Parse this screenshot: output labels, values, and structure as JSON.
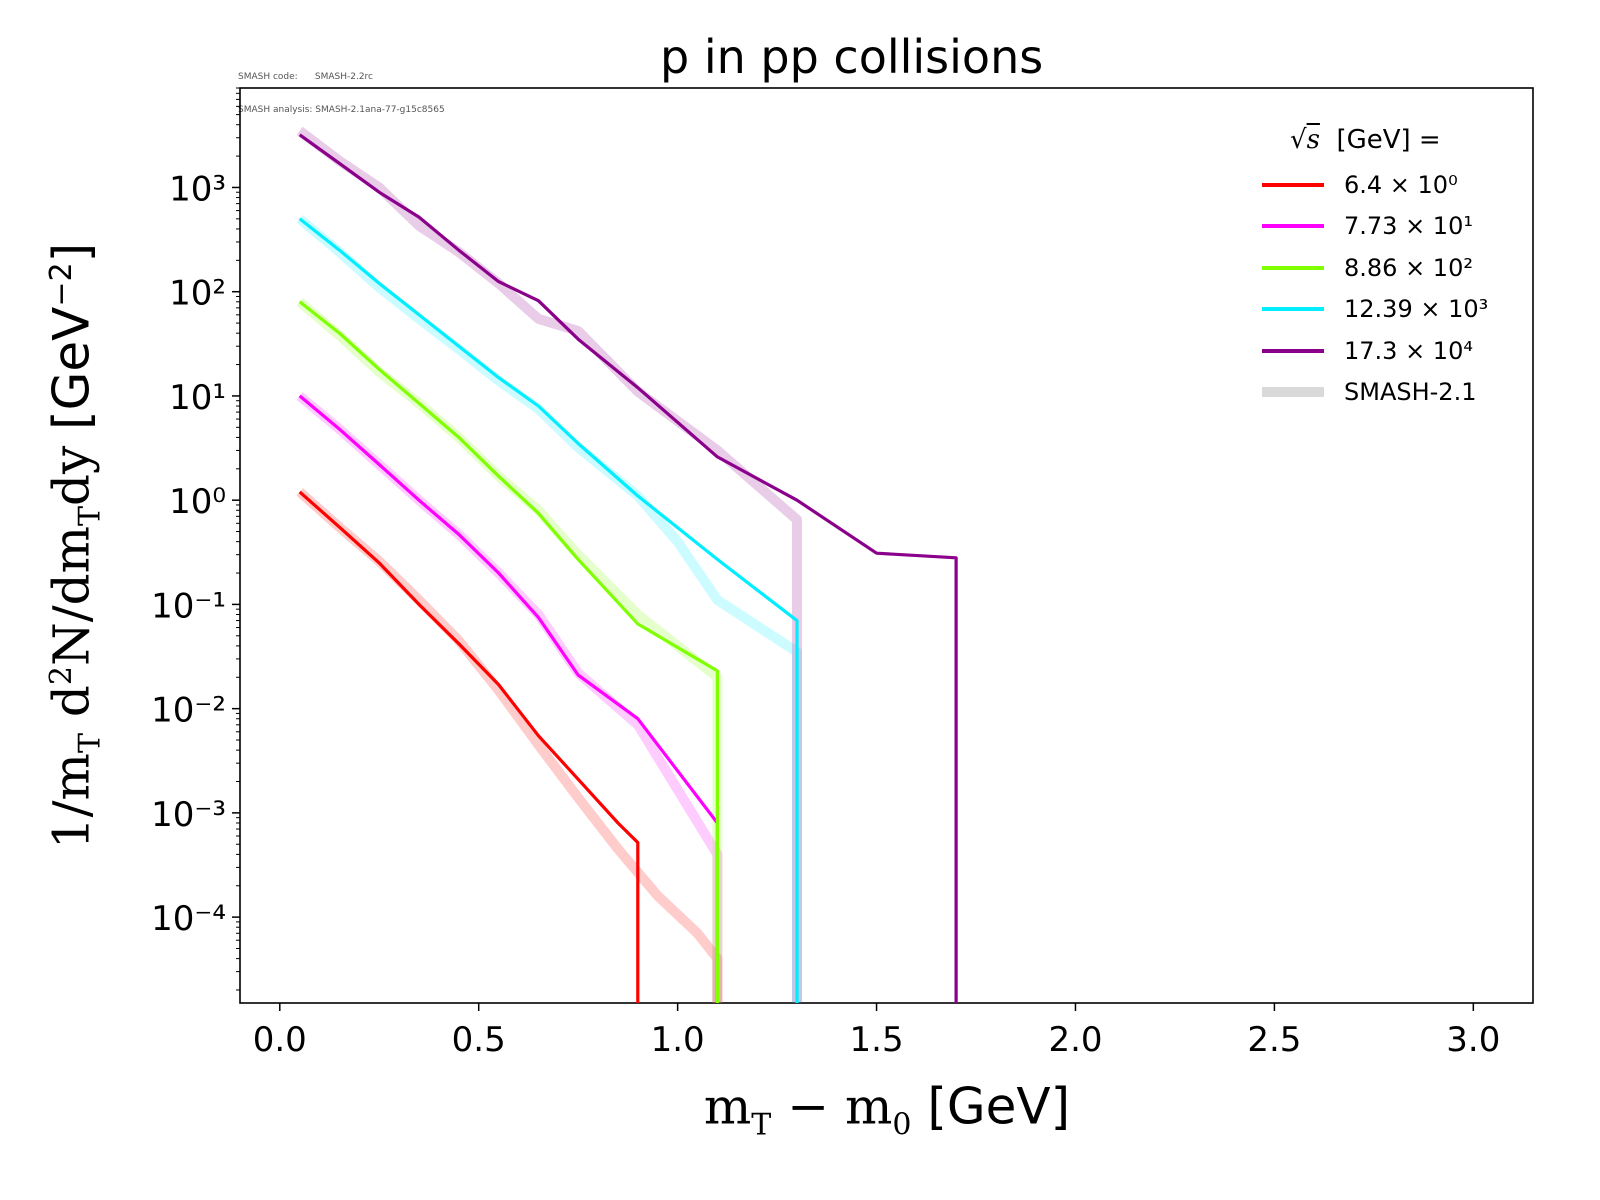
{
  "meta": {
    "code_line": "SMASH code:      SMASH-2.2rc",
    "analysis_line": "SMASH analysis: SMASH-2.1ana-77-g15c8565"
  },
  "chart_data": {
    "type": "line",
    "title": "p in pp collisions",
    "xlabel": "m_T − m_0 [GeV]",
    "ylabel": "1/m_T d²N/dm_T dy [GeV⁻²]",
    "xlim": [
      -0.1,
      3.15
    ],
    "ylim": [
      1.5e-05,
      9000
    ],
    "yscale": "log",
    "x_ticks": [
      "0.0",
      "0.5",
      "1.0",
      "1.5",
      "2.0",
      "2.5",
      "3.0"
    ],
    "x_tick_values": [
      0,
      0.5,
      1.0,
      1.5,
      2.0,
      2.5,
      3.0
    ],
    "y_tick_values": [
      0.0001,
      0.001,
      0.01,
      0.1,
      1,
      10,
      100,
      1000
    ],
    "y_ticks": [
      "10⁻⁴",
      "10⁻³",
      "10⁻²",
      "10⁻¹",
      "10⁰",
      "10¹",
      "10²",
      "10³"
    ],
    "legend_title": "√s  [GeV] =",
    "legend_position": "top-right",
    "grid": false,
    "series": [
      {
        "name": "6.4 × 10⁰",
        "color": "#ff0000",
        "x": [
          0.05,
          0.15,
          0.25,
          0.35,
          0.45,
          0.55,
          0.65,
          0.75,
          0.85,
          0.9,
          0.9
        ],
        "y": [
          1.2,
          0.55,
          0.25,
          0.1,
          0.042,
          0.017,
          0.0055,
          0.0021,
          0.0008,
          0.00052,
          1.5e-05
        ],
        "ref_x": [
          0.05,
          0.15,
          0.25,
          0.35,
          0.45,
          0.55,
          0.65,
          0.75,
          0.85,
          0.95,
          1.05,
          1.1,
          1.1
        ],
        "ref_y": [
          1.2,
          0.55,
          0.26,
          0.11,
          0.045,
          0.015,
          0.0045,
          0.0014,
          0.00045,
          0.00016,
          7e-05,
          4e-05,
          1.5e-05
        ]
      },
      {
        "name": "7.73 × 10¹",
        "color": "#ff00ff",
        "x": [
          0.05,
          0.15,
          0.25,
          0.35,
          0.45,
          0.55,
          0.65,
          0.75,
          0.9,
          1.1,
          1.1
        ],
        "y": [
          10,
          4.8,
          2.2,
          1.0,
          0.47,
          0.2,
          0.075,
          0.021,
          0.008,
          0.0008,
          1.5e-05
        ],
        "ref_x": [
          0.05,
          0.15,
          0.25,
          0.35,
          0.45,
          0.55,
          0.65,
          0.75,
          0.9,
          1.1,
          1.1
        ],
        "ref_y": [
          10,
          4.8,
          2.2,
          1.0,
          0.47,
          0.2,
          0.08,
          0.022,
          0.007,
          0.0004,
          1.5e-05
        ]
      },
      {
        "name": "8.86 × 10²",
        "color": "#7fff00",
        "x": [
          0.05,
          0.15,
          0.25,
          0.35,
          0.45,
          0.55,
          0.65,
          0.75,
          0.9,
          1.1,
          1.1
        ],
        "y": [
          80,
          40,
          18,
          8.5,
          4.0,
          1.7,
          0.75,
          0.27,
          0.065,
          0.023,
          1.5e-05
        ],
        "ref_x": [
          0.05,
          0.15,
          0.25,
          0.35,
          0.45,
          0.55,
          0.65,
          0.75,
          0.9,
          1.1,
          1.1
        ],
        "ref_y": [
          80,
          38,
          17,
          8.5,
          4.0,
          1.7,
          0.8,
          0.3,
          0.08,
          0.02,
          1.5e-05
        ]
      },
      {
        "name": "12.39 × 10³",
        "color": "#00eeff",
        "x": [
          0.05,
          0.15,
          0.25,
          0.35,
          0.45,
          0.55,
          0.65,
          0.75,
          0.9,
          1.1,
          1.3,
          1.3
        ],
        "y": [
          500,
          250,
          120,
          60,
          30,
          15,
          8,
          3.5,
          1.1,
          0.27,
          0.07,
          1.5e-05
        ],
        "ref_x": [
          0.05,
          0.15,
          0.25,
          0.35,
          0.45,
          0.55,
          0.65,
          0.75,
          0.9,
          1.0,
          1.1,
          1.3,
          1.3
        ],
        "ref_y": [
          500,
          240,
          110,
          55,
          28,
          14,
          7.5,
          3.2,
          1.1,
          0.4,
          0.11,
          0.035,
          1.5e-05
        ]
      },
      {
        "name": "17.3 × 10⁴",
        "color": "#8b008b",
        "x": [
          0.05,
          0.15,
          0.25,
          0.35,
          0.45,
          0.55,
          0.65,
          0.75,
          0.9,
          1.1,
          1.3,
          1.5,
          1.7,
          1.7
        ],
        "y": [
          3200,
          1700,
          900,
          520,
          250,
          125,
          82,
          35,
          12,
          2.6,
          1.0,
          0.31,
          0.28,
          1.5e-05
        ],
        "ref_x": [
          0.05,
          0.15,
          0.25,
          0.35,
          0.45,
          0.55,
          0.65,
          0.75,
          0.9,
          1.1,
          1.3,
          1.3
        ],
        "ref_y": [
          3500,
          1800,
          1000,
          430,
          240,
          120,
          55,
          42,
          11,
          3.0,
          0.65,
          1.5e-05
        ]
      },
      {
        "name": "SMASH-2.1",
        "color": "#d9d9d9",
        "reference": true
      }
    ]
  }
}
